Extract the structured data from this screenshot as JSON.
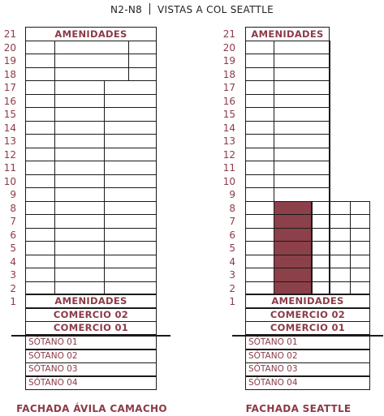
{
  "title": {
    "left": "N2-N8",
    "right": "VISTAS A COL SEATTLE"
  },
  "levels": [
    "21",
    "20",
    "19",
    "18",
    "17",
    "16",
    "15",
    "14",
    "13",
    "12",
    "11",
    "10",
    "9",
    "8",
    "7",
    "6",
    "5",
    "4",
    "3",
    "2",
    "1"
  ],
  "amenidades_top": "AMENIDADES",
  "amenidades_bottom": "AMENIDADES",
  "comercio_02": "COMERCIO 02",
  "comercio_01": "COMERCIO 01",
  "basements": [
    "SÓTANO 01",
    "SÓTANO 02",
    "SÓTANO 03",
    "SÓTANO 04"
  ],
  "facades": {
    "left": "FACHADA ÁVILA CAMACHO",
    "right": "FACHADA SEATTLE"
  },
  "highlight_floors": {
    "from": 2,
    "to": 8,
    "color": "#8c4049"
  },
  "colors": {
    "accent": "#8c3b48",
    "line": "#1a1a1a"
  }
}
